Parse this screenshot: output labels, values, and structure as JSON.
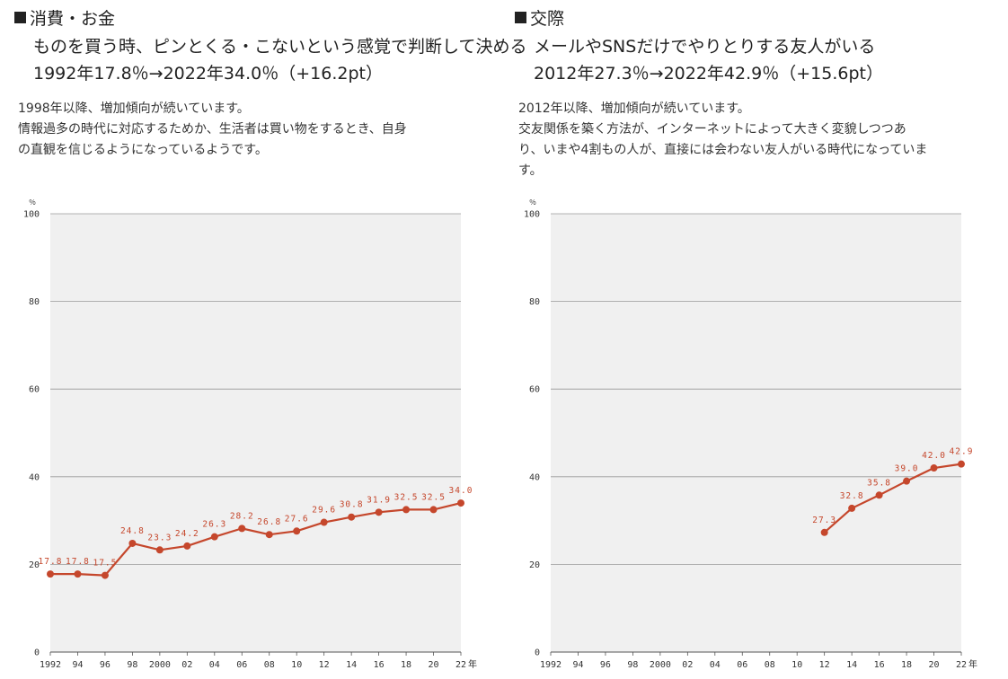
{
  "panels": [
    {
      "heading": "消費・お金",
      "subtitle1": "ものを買う時、ピンとくる・こないという感覚で判断して決める",
      "subtitle2": "1992年17.8％→2022年34.0％（+16.2pt）",
      "description": [
        "1998年以降、増加傾向が続いています。",
        "情報過多の時代に対応するためか、生活者は買い物をするとき、自身",
        "の直観を信じるようになっているようです。"
      ]
    },
    {
      "heading": "交際",
      "subtitle1": "メールやSNSだけでやりとりする友人がいる",
      "subtitle2": "2012年27.3％→2022年42.9％（+15.6pt）",
      "description": [
        "2012年以降、増加傾向が続いています。",
        "交友関係を築く方法が、インターネットによって大きく変貌しつつあ",
        "り、いまや4割もの人が、直接には会わない友人がいる時代になっていま",
        "す。"
      ]
    }
  ],
  "colors": {
    "line": "#c5472c",
    "plot_bg": "#f0f0f0",
    "grid": "#9a9a9a"
  },
  "chart_data": [
    {
      "type": "line",
      "unit_label": "％",
      "ylim": [
        0,
        100
      ],
      "yticks": [
        0,
        20,
        40,
        60,
        80,
        100
      ],
      "categories": [
        "1992",
        "94",
        "96",
        "98",
        "2000",
        "02",
        "04",
        "06",
        "08",
        "10",
        "12",
        "14",
        "16",
        "18",
        "20",
        "22"
      ],
      "x_suffix": "年",
      "series": [
        {
          "values": [
            17.8,
            17.8,
            17.5,
            24.8,
            23.3,
            24.2,
            26.3,
            28.2,
            26.8,
            27.6,
            29.6,
            30.8,
            31.9,
            32.5,
            32.5,
            34.0
          ],
          "labels": [
            "17.8",
            "17.8",
            "17.5",
            "24.8",
            "23.3",
            "24.2",
            "26.3",
            "28.2",
            "26.8",
            "27.6",
            "29.6",
            "30.8",
            "31.9",
            "32.5",
            "32.5",
            "34.0"
          ]
        }
      ],
      "grid": true,
      "legend": "none"
    },
    {
      "type": "line",
      "unit_label": "％",
      "ylim": [
        0,
        100
      ],
      "yticks": [
        0,
        20,
        40,
        60,
        80,
        100
      ],
      "categories": [
        "1992",
        "94",
        "96",
        "98",
        "2000",
        "02",
        "04",
        "06",
        "08",
        "10",
        "12",
        "14",
        "16",
        "18",
        "20",
        "22"
      ],
      "x_suffix": "年",
      "series": [
        {
          "values": [
            null,
            null,
            null,
            null,
            null,
            null,
            null,
            null,
            null,
            null,
            27.3,
            32.8,
            35.8,
            39.0,
            42.0,
            42.9
          ],
          "labels": [
            null,
            null,
            null,
            null,
            null,
            null,
            null,
            null,
            null,
            null,
            "27.3",
            "32.8",
            "35.8",
            "39.0",
            "42.0",
            "42.9"
          ]
        }
      ],
      "grid": true,
      "legend": "none"
    }
  ]
}
